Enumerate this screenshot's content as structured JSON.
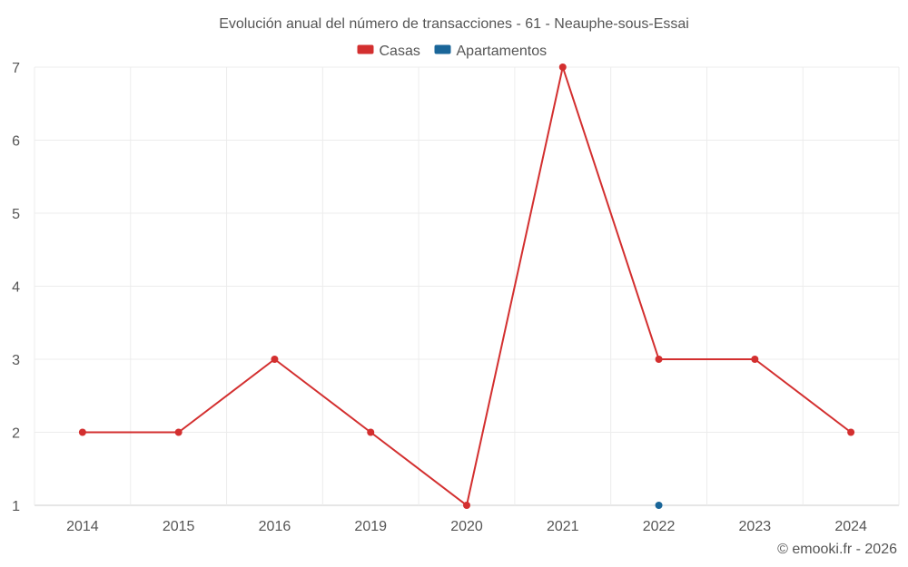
{
  "chart_data": {
    "type": "line",
    "title": "Evolución anual del número de transacciones - 61 - Neauphe-sous-Essai",
    "categories": [
      "2014",
      "2015",
      "2016",
      "2019",
      "2020",
      "2021",
      "2022",
      "2023",
      "2024"
    ],
    "series": [
      {
        "name": "Casas",
        "color": "#d32f2f",
        "values": [
          2,
          2,
          3,
          2,
          1,
          7,
          3,
          3,
          2
        ]
      },
      {
        "name": "Apartamentos",
        "color": "#1a6699",
        "values": [
          null,
          null,
          null,
          null,
          null,
          null,
          1,
          null,
          null
        ]
      }
    ],
    "y_ticks": [
      1,
      2,
      3,
      4,
      5,
      6,
      7
    ],
    "ylim": [
      1,
      7
    ],
    "grid": true,
    "legend_position": "top-center",
    "xlabel": "",
    "ylabel": ""
  },
  "credit": "© emooki.fr - 2026"
}
